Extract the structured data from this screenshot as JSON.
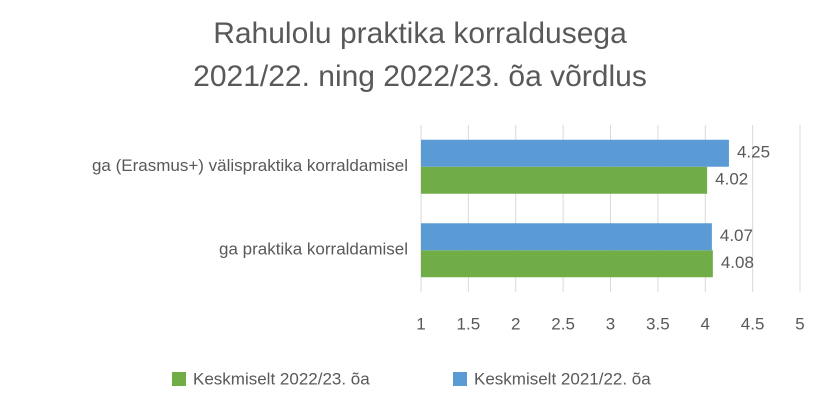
{
  "chart_data": {
    "type": "hbar",
    "title": [
      "Rahulolu praktika korraldusega",
      "2021/22. ning 2022/23. õa võrdlus"
    ],
    "categories": [
      "ga (Erasmus+) välispraktika korraldamisel",
      "ga praktika korraldamisel"
    ],
    "series": [
      {
        "name": "Keskmiselt 2022/23. õa",
        "color": "#70ad47",
        "values": [
          4.02,
          4.08
        ]
      },
      {
        "name": "Keskmiselt 2021/22. õa",
        "color": "#5b9bd5",
        "values": [
          4.25,
          4.07
        ]
      }
    ],
    "xlim": [
      1,
      5
    ],
    "xticks": [
      1,
      1.5,
      2,
      2.5,
      3,
      3.5,
      4,
      4.5,
      5
    ],
    "grid": true,
    "legend": "bottom"
  }
}
